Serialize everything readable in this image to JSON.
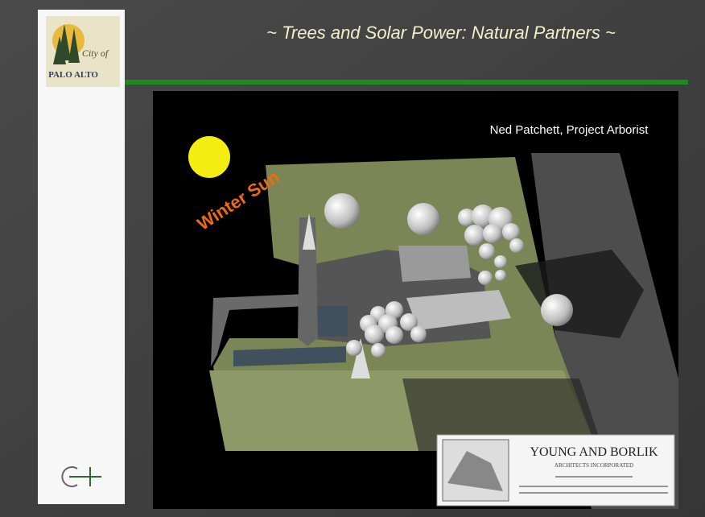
{
  "header": {
    "title": "~ Trees and Solar Power:  Natural Partners ~"
  },
  "logo": {
    "city_of": "City of",
    "name": "PALO ALTO"
  },
  "scene": {
    "credit": "Ned Patchett, Project Arborist",
    "sun_label": "Winter Sun"
  },
  "firm": {
    "name": "YOUNG AND BORLIK",
    "subtitle": "ARCHITECTS   INCORPORATED"
  }
}
